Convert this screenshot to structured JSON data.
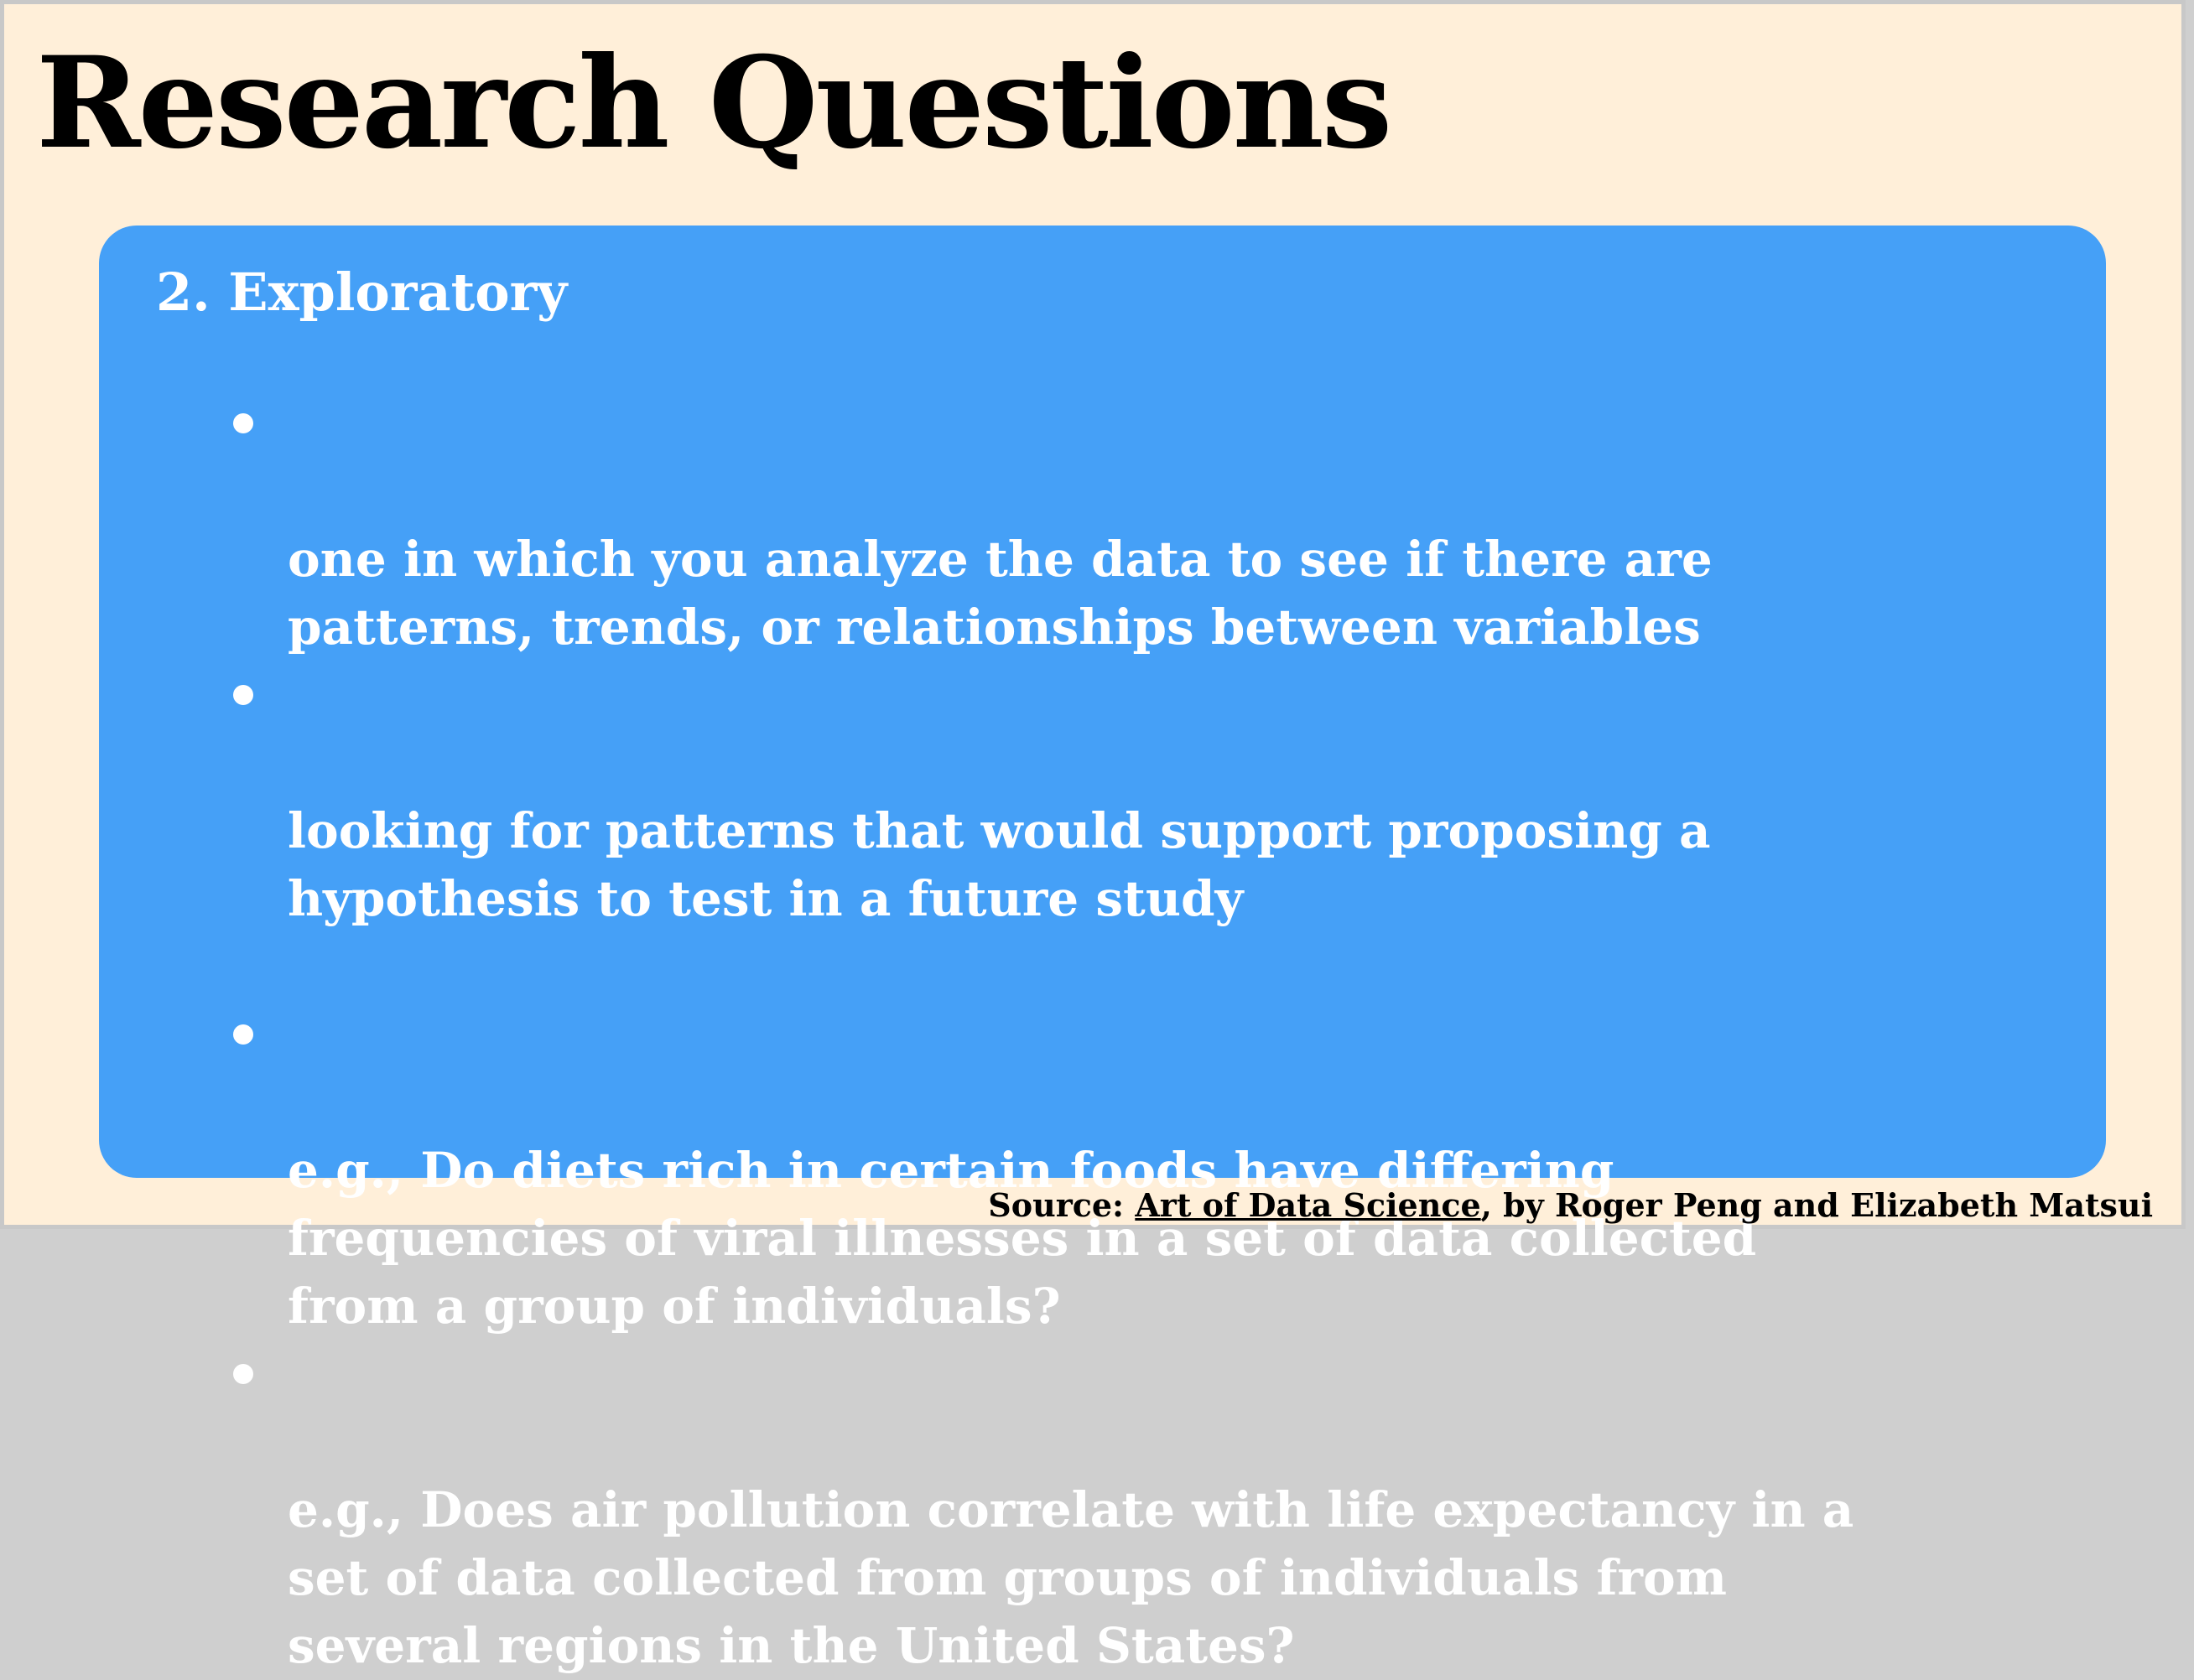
{
  "slide": {
    "title": "Research Questions",
    "panel": {
      "heading": "2. Exploratory",
      "bullets": [
        "one in which you analyze the data to see if there are\npatterns, trends, or relationships between variables",
        "looking for patterns that would support proposing a\nhypothesis to test in a future study",
        "e.g., Do diets rich in certain foods have differing\nfrequencies of viral illnesses in a set of data collected\nfrom a group of individuals?",
        "e.g., Does air pollution correlate with life expectancy in a\nset of data collected from groups of individuals from\nseveral regions in the United States?"
      ]
    },
    "source": {
      "prefix": "Source: ",
      "book": "Art of Data Science",
      "suffix": ", by Roger Peng and Elizabeth Matsui"
    }
  },
  "colors": {
    "background": "#ffefd9",
    "panel": "#45a0f7",
    "panel_text": "#ffffff",
    "title_text": "#000000"
  }
}
